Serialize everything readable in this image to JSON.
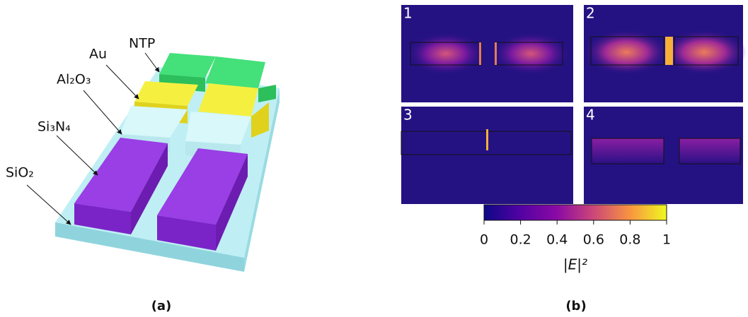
{
  "panel_a": {
    "caption": "(a)",
    "labels": [
      "NTP",
      "Au",
      "Al₂O₃",
      "Si₃N₄",
      "SiO₂"
    ]
  },
  "panel_b": {
    "caption": "(b)",
    "maps": [
      "1",
      "2",
      "3",
      "4"
    ],
    "colorbar": {
      "label": "|E|²",
      "lim": [
        0,
        1
      ],
      "ticks": [
        0,
        0.2,
        0.4,
        0.6,
        0.8,
        1
      ]
    }
  }
}
